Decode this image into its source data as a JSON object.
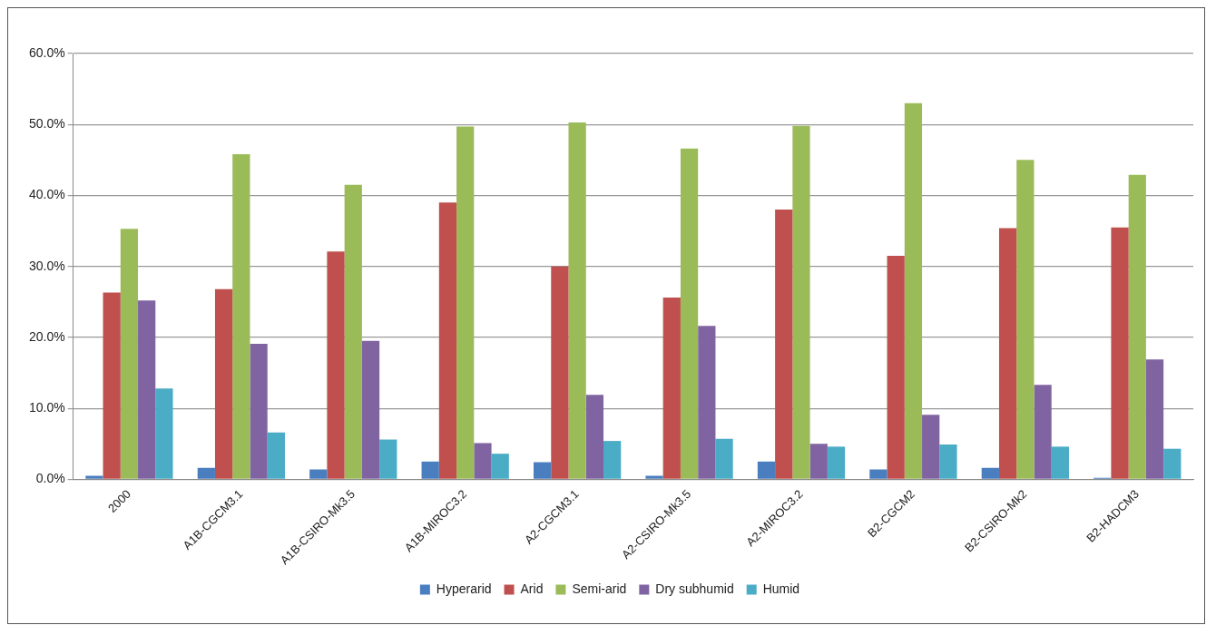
{
  "chart_data": {
    "type": "bar",
    "categories": [
      "2000",
      "A1B-CGCM3.1",
      "A1B-CSIRO-Mk3.5",
      "A1B-MIROC3.2",
      "A2-CGCM3.1",
      "A2-CSIRO-Mk3.5",
      "A2-MIROC3.2",
      "B2-CGCM2",
      "B2-CSIRO-Mk2",
      "B2-HADCM3"
    ],
    "series": [
      {
        "name": "Hyperarid",
        "color": "#4a7ebf",
        "values": [
          0.5,
          1.6,
          1.4,
          2.5,
          2.4,
          0.5,
          2.5,
          1.4,
          1.6,
          0.2
        ]
      },
      {
        "name": "Arid",
        "color": "#c0504d",
        "values": [
          26.3,
          26.8,
          32.1,
          39.0,
          30.0,
          25.6,
          38.0,
          31.5,
          35.4,
          35.5
        ]
      },
      {
        "name": "Semi-arid",
        "color": "#9bbb59",
        "values": [
          35.3,
          45.8,
          41.5,
          49.7,
          50.3,
          46.6,
          49.8,
          53.0,
          45.0,
          42.9
        ]
      },
      {
        "name": "Dry subhumid",
        "color": "#8064a2",
        "values": [
          25.2,
          19.1,
          19.5,
          5.1,
          11.9,
          21.6,
          5.0,
          9.1,
          13.3,
          16.9
        ]
      },
      {
        "name": "Humid",
        "color": "#4bacc6",
        "values": [
          12.8,
          6.6,
          5.6,
          3.6,
          5.4,
          5.7,
          4.6,
          4.9,
          4.6,
          4.3
        ]
      }
    ],
    "ylim": [
      0,
      60
    ],
    "yticks": [
      {
        "value": 0,
        "label": "0.0%"
      },
      {
        "value": 10,
        "label": "10.0%"
      },
      {
        "value": 20,
        "label": "20.0%"
      },
      {
        "value": 30,
        "label": "30.0%"
      },
      {
        "value": 40,
        "label": "40.0%"
      },
      {
        "value": 50,
        "label": "50.0%"
      },
      {
        "value": 60,
        "label": "60.0%"
      }
    ],
    "grid": "y",
    "legend": "bottom"
  }
}
